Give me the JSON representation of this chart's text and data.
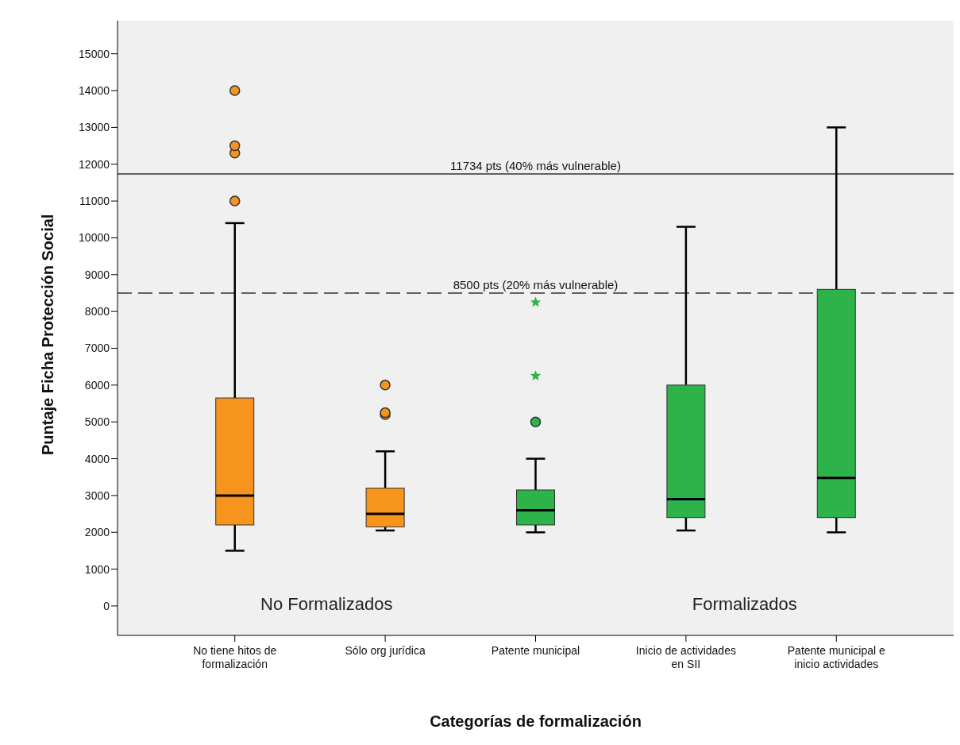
{
  "chart_data": {
    "type": "box",
    "xlabel": "Categorías de formalización",
    "ylabel": "Puntaje Ficha Protección Social",
    "categories": [
      "No tiene hitos de formalización",
      "Sólo org jurídica",
      "Patente municipal",
      "Inicio de actividades en SII",
      "Patente municipal e inicio actividades"
    ],
    "colors": [
      "#f7941d",
      "#f7941d",
      "#2db34a",
      "#2db34a",
      "#2db34a"
    ],
    "boxes": [
      {
        "low": 1500,
        "q1": 2200,
        "median": 3000,
        "q3": 5650,
        "high": 10400,
        "outliers": [
          11000,
          12300,
          12500,
          14000
        ]
      },
      {
        "low": 2050,
        "q1": 2150,
        "median": 2500,
        "q3": 3200,
        "high": 4200,
        "outliers": [
          5200,
          5250,
          6000
        ]
      },
      {
        "low": 2000,
        "q1": 2200,
        "median": 2600,
        "q3": 3150,
        "high": 4000,
        "outliers": [
          5000,
          6250,
          8250
        ]
      },
      {
        "low": 2050,
        "q1": 2400,
        "median": 2900,
        "q3": 6000,
        "high": 10300
      },
      {
        "low": 2000,
        "q1": 2400,
        "median": 3480,
        "q3": 8600,
        "high": 13000
      }
    ],
    "ylim": [
      -800,
      15900
    ],
    "yticks": [
      0,
      1000,
      2000,
      3000,
      4000,
      5000,
      6000,
      7000,
      8000,
      9000,
      10000,
      11000,
      12000,
      13000,
      14000,
      15000
    ],
    "ref_lines": [
      {
        "axis": "y",
        "value": 11734,
        "label": "11734 pts (40% más vulnerable)",
        "line_style": "solid",
        "color": "#333333"
      },
      {
        "axis": "y",
        "value": 8500,
        "label": "8500 pts (20% más vulnerable)",
        "line_style": "dashed",
        "color": "#333333"
      }
    ],
    "annotations": [
      "No Formalizados",
      "Formalizados"
    ],
    "grid": false,
    "legend": false
  }
}
